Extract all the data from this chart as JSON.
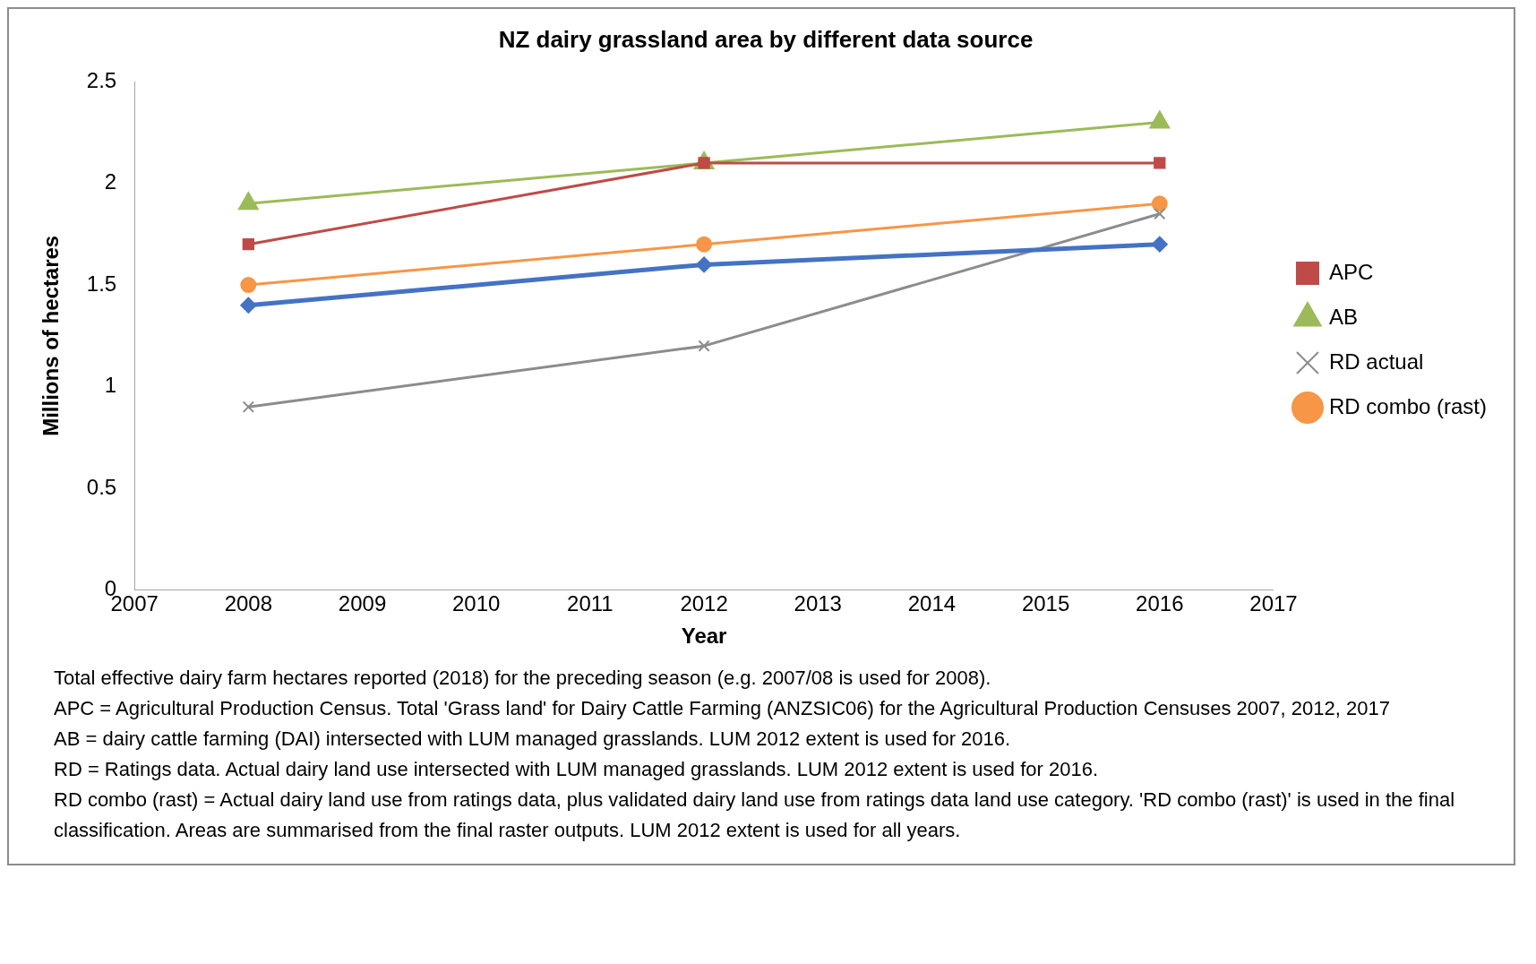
{
  "chart_data": {
    "type": "line",
    "title": "NZ dairy grassland area by different data source",
    "xlabel": "Year",
    "ylabel": "Millions of hectares",
    "x": [
      2008,
      2012,
      2016
    ],
    "series": [
      {
        "color": "#4472c4",
        "marker": "diamond",
        "values": [
          1.4,
          1.6,
          1.7
        ]
      },
      {
        "name": "APC",
        "color": "#be4b48",
        "marker": "square",
        "values": [
          1.7,
          2.1,
          2.1
        ]
      },
      {
        "name": "AB",
        "color": "#9bbb59",
        "marker": "triangle",
        "values": [
          1.9,
          2.1,
          2.3
        ]
      },
      {
        "name": "RD actual",
        "color": "#8c8c8c",
        "marker": "cross",
        "values": [
          0.9,
          1.2,
          1.85
        ]
      },
      {
        "name": "RD combo (rast)",
        "color": "#f79646",
        "marker": "circle",
        "values": [
          1.5,
          1.7,
          1.9
        ]
      }
    ],
    "xlim": [
      2007,
      2017
    ],
    "xticks": [
      2007,
      2008,
      2009,
      2010,
      2011,
      2012,
      2013,
      2014,
      2015,
      2016,
      2017
    ],
    "ylim": [
      0,
      2.5
    ],
    "yticks": [
      0,
      0.5,
      1,
      1.5,
      2,
      2.5
    ],
    "grid": false,
    "legend": "right",
    "annotations": [
      "Total effective dairy farm hectares reported (2018) for the preceding season (e.g. 2007/08 is used for 2008).",
      "APC = Agricultural Production Census. Total 'Grass land' for Dairy Cattle  Farming (ANZSIC06) for the Agricultural Production Censuses 2007, 2012, 2017",
      "AB = dairy cattle farming (DAI) intersected with LUM managed grasslands. LUM 2012 extent is used for 2016.",
      "RD = Ratings data. Actual dairy land use intersected with LUM managed grasslands. LUM 2012 extent is used for 2016.",
      "RD combo (rast) = Actual dairy land use from ratings data, plus validated dairy land use from ratings data land use category. 'RD combo (rast)' is used in the final classification. Areas are summarised from the final raster outputs. LUM 2012 extent is used for all years."
    ]
  }
}
